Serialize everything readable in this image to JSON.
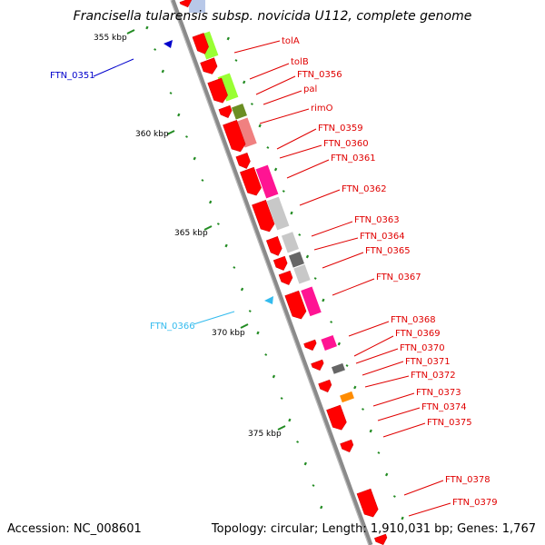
{
  "title": "Francisella tularensis subsp. novicida U112, complete genome",
  "accession_text": "Accession: NC_008601",
  "topology_text": "Topology: circular; Length: 1,910,031 bp; Genes: 1,767",
  "colors": {
    "gene_red": "#ff0000",
    "leader_red": "#e00000",
    "leader_blue": "#0000cc",
    "leader_cyan": "#33bbee",
    "gc_green": "#228b22",
    "backbone": "#8a8a8a",
    "lime": "#99ff33",
    "olive": "#6b8e23",
    "salmon": "#f08080",
    "magenta": "#ff1493",
    "light_gray": "#c8c8c8",
    "dark_gray": "#666666",
    "orange": "#ff8c00"
  },
  "scale_labels": [
    "355 kbp",
    "360 kbp",
    "365 kbp",
    "370 kbp",
    "375 kbp"
  ],
  "genes": [
    {
      "label": "FTN_0351",
      "color": "leader_blue"
    },
    {
      "label": "tolA",
      "color": "leader_red"
    },
    {
      "label": "tolB",
      "color": "leader_red"
    },
    {
      "label": "FTN_0356",
      "color": "leader_red"
    },
    {
      "label": "pal",
      "color": "leader_red"
    },
    {
      "label": "rimO",
      "color": "leader_red"
    },
    {
      "label": "FTN_0359",
      "color": "leader_red"
    },
    {
      "label": "FTN_0360",
      "color": "leader_red"
    },
    {
      "label": "FTN_0361",
      "color": "leader_red"
    },
    {
      "label": "FTN_0362",
      "color": "leader_red"
    },
    {
      "label": "FTN_0363",
      "color": "leader_red"
    },
    {
      "label": "FTN_0364",
      "color": "leader_red"
    },
    {
      "label": "FTN_0365",
      "color": "leader_red"
    },
    {
      "label": "FTN_0367",
      "color": "leader_red"
    },
    {
      "label": "FTN_0366",
      "color": "leader_cyan"
    },
    {
      "label": "FTN_0368",
      "color": "leader_red"
    },
    {
      "label": "FTN_0369",
      "color": "leader_red"
    },
    {
      "label": "FTN_0370",
      "color": "leader_red"
    },
    {
      "label": "FTN_0371",
      "color": "leader_red"
    },
    {
      "label": "FTN_0372",
      "color": "leader_red"
    },
    {
      "label": "FTN_0373",
      "color": "leader_red"
    },
    {
      "label": "FTN_0374",
      "color": "leader_red"
    },
    {
      "label": "FTN_0375",
      "color": "leader_red"
    },
    {
      "label": "FTN_0378",
      "color": "leader_red"
    },
    {
      "label": "FTN_0379",
      "color": "leader_red"
    }
  ]
}
